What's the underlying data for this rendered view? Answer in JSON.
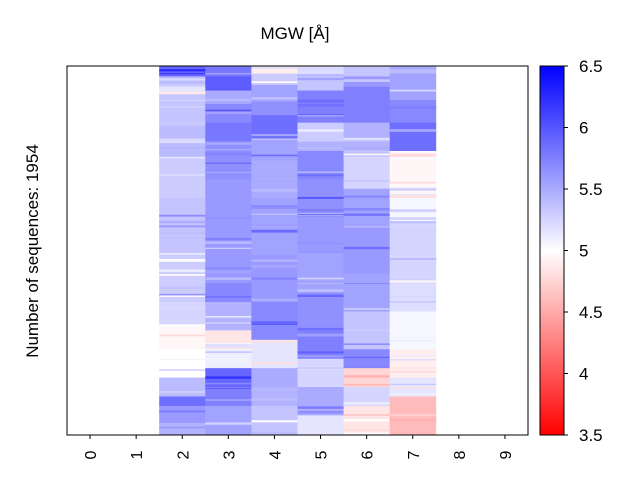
{
  "chart_data": {
    "type": "heatmap",
    "title": "MGW [Å]",
    "ylabel": "Number of sequences: 1954",
    "xlabel": "",
    "x_ticks": [
      "0",
      "1",
      "2",
      "3",
      "4",
      "5",
      "6",
      "7",
      "8",
      "9"
    ],
    "n_sequences": 1954,
    "value_range": [
      3.5,
      6.5
    ],
    "colormap": {
      "name": "bwr",
      "low": "#ff0000",
      "mid": "#ffffff",
      "high": "#0000ff",
      "mid_value": 5.0
    },
    "colorbar": {
      "ticks": [
        "3.5",
        "4",
        "4.5",
        "5",
        "5.5",
        "6",
        "6.5"
      ],
      "tick_values": [
        3.5,
        4.0,
        4.5,
        5.0,
        5.5,
        6.0,
        6.5
      ]
    },
    "populated_positions": [
      2,
      3,
      4,
      5,
      6,
      7
    ],
    "columns": [
      {
        "position": 2,
        "bands": [
          [
            0,
            55,
            5.9
          ],
          [
            55,
            110,
            5.4
          ],
          [
            110,
            150,
            5.15
          ],
          [
            150,
            320,
            5.35
          ],
          [
            320,
            480,
            5.4
          ],
          [
            480,
            700,
            5.3
          ],
          [
            700,
            1000,
            5.35
          ],
          [
            1000,
            1250,
            5.3
          ],
          [
            1250,
            1380,
            5.25
          ],
          [
            1380,
            1500,
            4.95
          ],
          [
            1500,
            1650,
            5.0
          ],
          [
            1650,
            1750,
            5.4
          ],
          [
            1750,
            1800,
            5.85
          ],
          [
            1800,
            1890,
            5.6
          ],
          [
            1890,
            1954,
            5.45
          ]
        ]
      },
      {
        "position": 3,
        "bands": [
          [
            0,
            55,
            5.8
          ],
          [
            55,
            130,
            5.95
          ],
          [
            130,
            200,
            5.5
          ],
          [
            200,
            300,
            5.7
          ],
          [
            300,
            400,
            5.8
          ],
          [
            400,
            600,
            5.65
          ],
          [
            600,
            1000,
            5.6
          ],
          [
            1000,
            1150,
            5.6
          ],
          [
            1150,
            1250,
            5.7
          ],
          [
            1250,
            1400,
            5.45
          ],
          [
            1400,
            1500,
            4.85
          ],
          [
            1500,
            1600,
            5.1
          ],
          [
            1600,
            1700,
            5.9
          ],
          [
            1700,
            1800,
            5.75
          ],
          [
            1800,
            1954,
            5.55
          ]
        ]
      },
      {
        "position": 4,
        "bands": [
          [
            0,
            40,
            4.9
          ],
          [
            40,
            100,
            5.3
          ],
          [
            100,
            180,
            5.55
          ],
          [
            180,
            260,
            5.65
          ],
          [
            260,
            360,
            5.85
          ],
          [
            360,
            500,
            5.55
          ],
          [
            500,
            700,
            5.5
          ],
          [
            700,
            1000,
            5.55
          ],
          [
            1000,
            1250,
            5.6
          ],
          [
            1250,
            1450,
            5.7
          ],
          [
            1450,
            1600,
            5.15
          ],
          [
            1600,
            1700,
            5.5
          ],
          [
            1700,
            1800,
            5.45
          ],
          [
            1800,
            1954,
            5.35
          ]
        ]
      },
      {
        "position": 5,
        "bands": [
          [
            0,
            55,
            5.2
          ],
          [
            55,
            130,
            5.35
          ],
          [
            130,
            300,
            5.75
          ],
          [
            300,
            400,
            5.3
          ],
          [
            400,
            450,
            5.45
          ],
          [
            450,
            600,
            5.7
          ],
          [
            600,
            800,
            5.65
          ],
          [
            800,
            1000,
            5.6
          ],
          [
            1000,
            1200,
            5.55
          ],
          [
            1200,
            1400,
            5.65
          ],
          [
            1400,
            1550,
            5.75
          ],
          [
            1550,
            1700,
            5.25
          ],
          [
            1700,
            1850,
            5.5
          ],
          [
            1850,
            1954,
            5.15
          ]
        ]
      },
      {
        "position": 6,
        "bands": [
          [
            0,
            55,
            5.35
          ],
          [
            55,
            110,
            5.6
          ],
          [
            110,
            300,
            5.75
          ],
          [
            300,
            450,
            5.45
          ],
          [
            450,
            650,
            5.25
          ],
          [
            650,
            850,
            5.55
          ],
          [
            850,
            1100,
            5.6
          ],
          [
            1100,
            1300,
            5.55
          ],
          [
            1300,
            1500,
            5.35
          ],
          [
            1500,
            1600,
            5.7
          ],
          [
            1600,
            1700,
            4.75
          ],
          [
            1700,
            1800,
            5.25
          ],
          [
            1800,
            1954,
            4.85
          ]
        ]
      },
      {
        "position": 7,
        "bands": [
          [
            0,
            40,
            5.4
          ],
          [
            40,
            180,
            5.55
          ],
          [
            180,
            300,
            5.7
          ],
          [
            300,
            450,
            5.85
          ],
          [
            450,
            700,
            4.95
          ],
          [
            700,
            800,
            5.05
          ],
          [
            800,
            1150,
            5.25
          ],
          [
            1150,
            1300,
            5.2
          ],
          [
            1300,
            1500,
            5.05
          ],
          [
            1500,
            1650,
            4.9
          ],
          [
            1650,
            1750,
            5.15
          ],
          [
            1750,
            1954,
            4.6
          ]
        ]
      }
    ]
  }
}
